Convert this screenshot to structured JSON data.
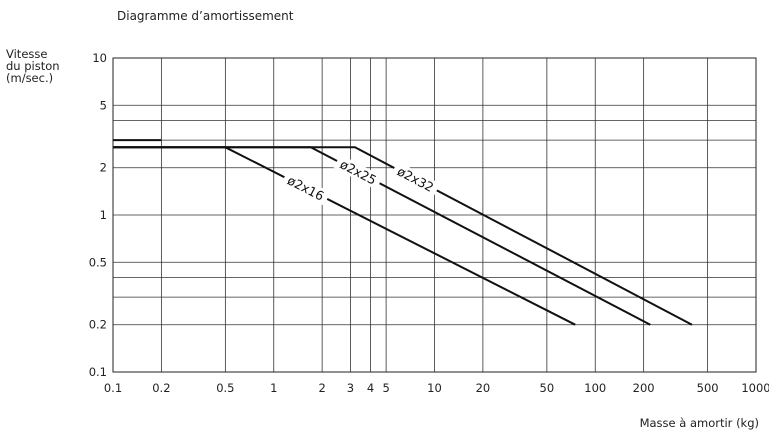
{
  "chart_data": {
    "type": "line",
    "title": "Diagramme d’amortissement",
    "ylabel_lines": [
      "Vitesse",
      "du piston",
      "(m/sec.)"
    ],
    "xlabel": "Masse à amortir (kg)",
    "x_scale": "log",
    "y_scale": "log",
    "xlim": [
      0.1,
      1000
    ],
    "ylim": [
      0.1,
      10
    ],
    "grid": true,
    "x_tick_labels": [
      "0.1",
      "0.2",
      "0.5",
      "1",
      "2",
      "3",
      "4",
      "5",
      "10",
      "20",
      "50",
      "100",
      "200",
      "500",
      "1000"
    ],
    "y_tick_labels": [
      "0.1",
      "0.2",
      "0.5",
      "1",
      "2",
      "5",
      "10"
    ],
    "series": [
      {
        "name": "ø2x16",
        "x": [
          0.1,
          0.5,
          75
        ],
        "y": [
          2.7,
          2.7,
          0.2
        ]
      },
      {
        "name": "ø2x25",
        "x": [
          0.1,
          1.7,
          220
        ],
        "y": [
          2.7,
          2.7,
          0.2
        ]
      },
      {
        "name": "ø2x32",
        "x": [
          0.1,
          3.2,
          400
        ],
        "y": [
          2.7,
          2.7,
          0.2
        ]
      },
      {
        "name": "",
        "x": [
          0.1,
          0.2
        ],
        "y": [
          3.0,
          3.0
        ]
      }
    ]
  }
}
